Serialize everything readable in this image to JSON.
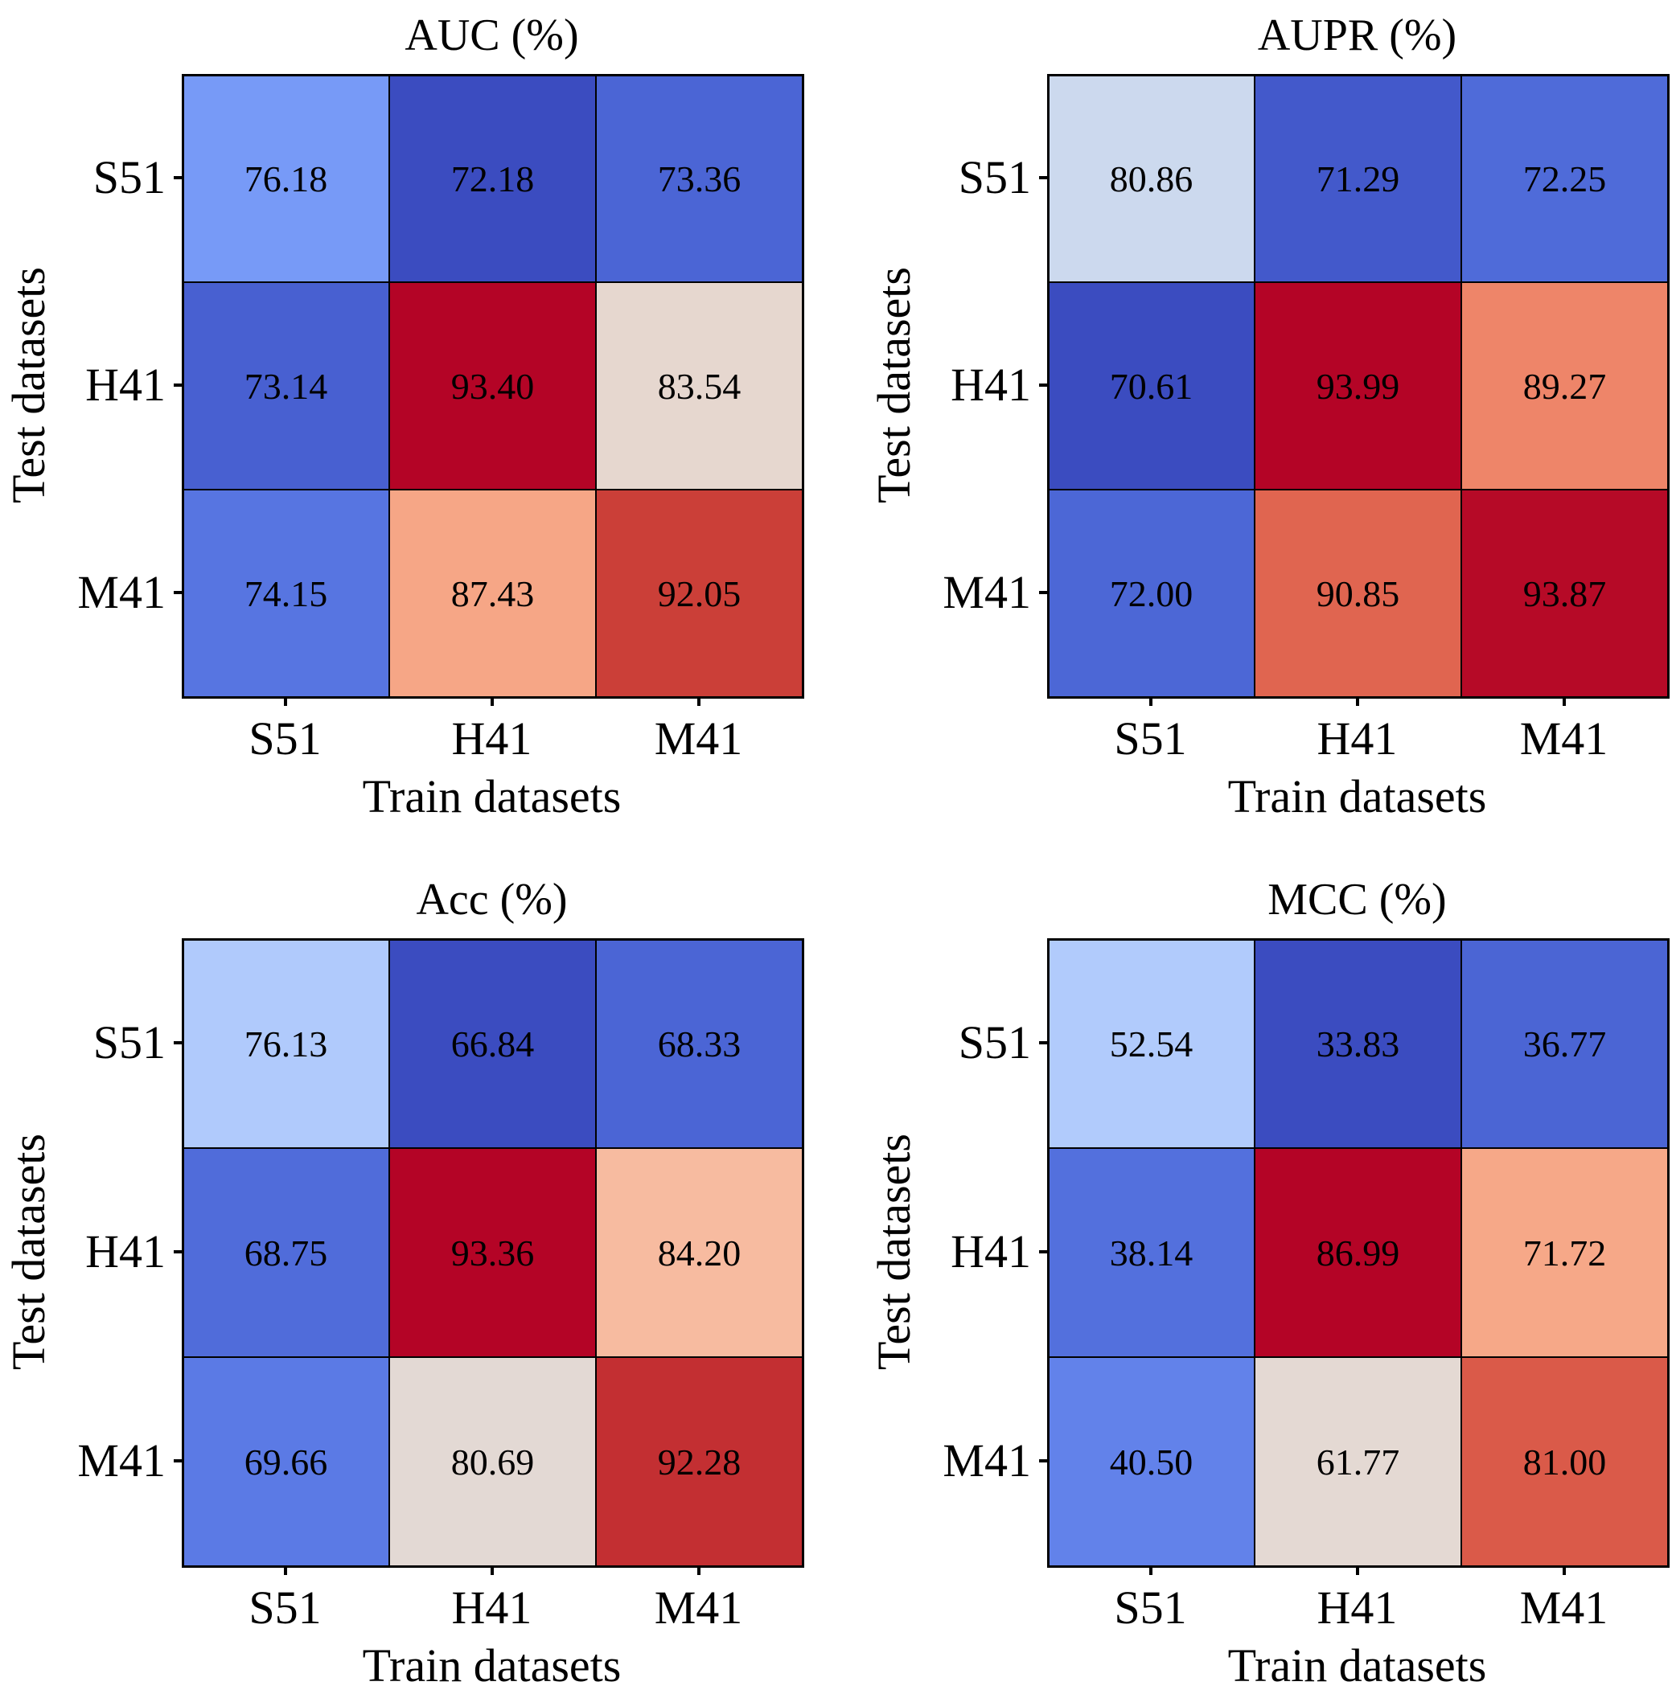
{
  "chart_data": [
    {
      "type": "heatmap",
      "title": "AUC (%)",
      "xlabel": "Train datasets",
      "ylabel": "Test datasets",
      "x_categories": [
        "S51",
        "H41",
        "M41"
      ],
      "y_categories": [
        "S51",
        "H41",
        "M41"
      ],
      "colormap": "coolwarm",
      "values": [
        [
          76.18,
          72.18,
          73.36
        ],
        [
          73.14,
          93.4,
          83.54
        ],
        [
          74.15,
          87.43,
          92.05
        ]
      ],
      "labels": [
        [
          "76.18",
          "72.18",
          "73.36"
        ],
        [
          "73.14",
          "93.40",
          "83.54"
        ],
        [
          "74.15",
          "87.43",
          "92.05"
        ]
      ]
    },
    {
      "type": "heatmap",
      "title": "AUPR (%)",
      "xlabel": "Train datasets",
      "ylabel": "Test datasets",
      "x_categories": [
        "S51",
        "H41",
        "M41"
      ],
      "y_categories": [
        "S51",
        "H41",
        "M41"
      ],
      "colormap": "coolwarm",
      "values": [
        [
          80.86,
          71.29,
          72.25
        ],
        [
          70.61,
          93.99,
          89.27
        ],
        [
          72.0,
          90.85,
          93.87
        ]
      ],
      "labels": [
        [
          "80.86",
          "71.29",
          "72.25"
        ],
        [
          "70.61",
          "93.99",
          "89.27"
        ],
        [
          "72.00",
          "90.85",
          "93.87"
        ]
      ]
    },
    {
      "type": "heatmap",
      "title": "Acc (%)",
      "xlabel": "Train datasets",
      "ylabel": "Test datasets",
      "x_categories": [
        "S51",
        "H41",
        "M41"
      ],
      "y_categories": [
        "S51",
        "H41",
        "M41"
      ],
      "colormap": "coolwarm",
      "values": [
        [
          76.13,
          66.84,
          68.33
        ],
        [
          68.75,
          93.36,
          84.2
        ],
        [
          69.66,
          80.69,
          92.28
        ]
      ],
      "labels": [
        [
          "76.13",
          "66.84",
          "68.33"
        ],
        [
          "68.75",
          "93.36",
          "84.20"
        ],
        [
          "69.66",
          "80.69",
          "92.28"
        ]
      ]
    },
    {
      "type": "heatmap",
      "title": "MCC (%)",
      "xlabel": "Train datasets",
      "ylabel": "Test datasets",
      "x_categories": [
        "S51",
        "H41",
        "M41"
      ],
      "y_categories": [
        "S51",
        "H41",
        "M41"
      ],
      "colormap": "coolwarm",
      "values": [
        [
          52.54,
          33.83,
          36.77
        ],
        [
          38.14,
          86.99,
          71.72
        ],
        [
          40.5,
          61.77,
          81.0
        ]
      ],
      "labels": [
        [
          "52.54",
          "33.83",
          "36.77"
        ],
        [
          "38.14",
          "86.99",
          "71.72"
        ],
        [
          "40.50",
          "61.77",
          "81.00"
        ]
      ]
    }
  ]
}
